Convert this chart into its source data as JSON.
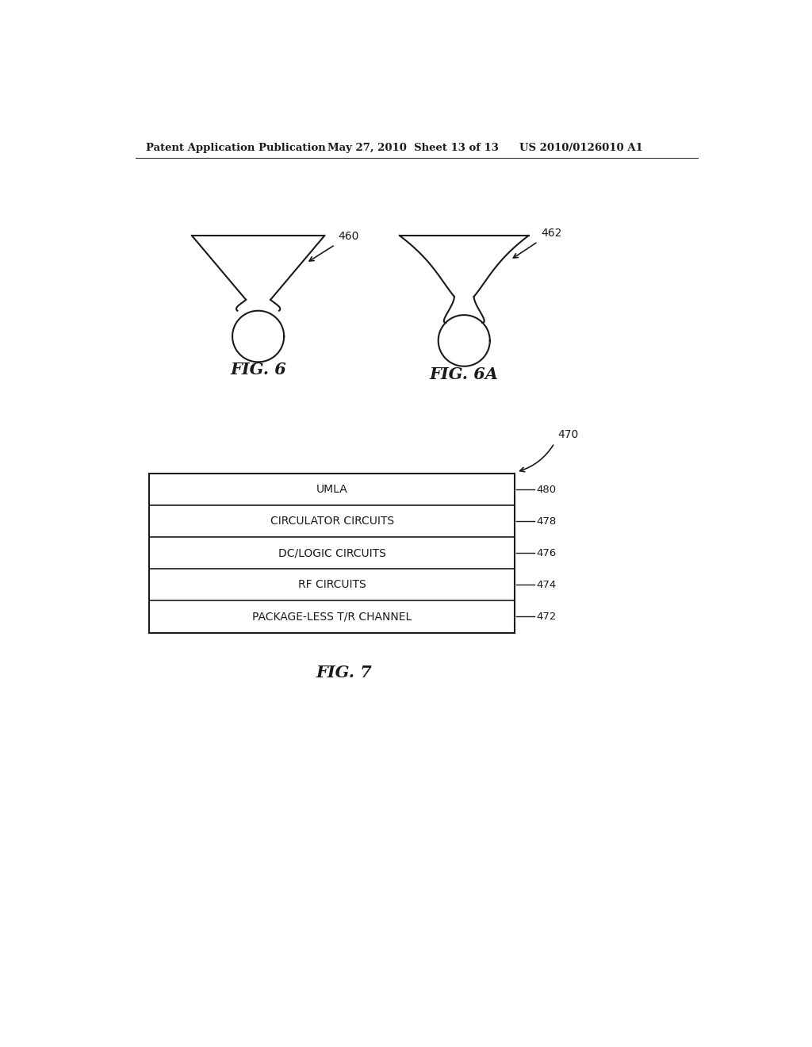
{
  "bg_color": "#ffffff",
  "header_left": "Patent Application Publication",
  "header_mid": "May 27, 2010  Sheet 13 of 13",
  "header_right": "US 2010/0126010 A1",
  "fig6_label": "FIG. 6",
  "fig6a_label": "FIG. 6A",
  "fig7_label": "FIG. 7",
  "label_460": "460",
  "label_462": "462",
  "label_470": "470",
  "layers": [
    {
      "label": "UMLA",
      "ref": "480"
    },
    {
      "label": "CIRCULATOR CIRCUITS",
      "ref": "478"
    },
    {
      "label": "DC/LOGIC CIRCUITS",
      "ref": "476"
    },
    {
      "label": "RF CIRCUITS",
      "ref": "474"
    },
    {
      "label": "PACKAGE-LESS T/R CHANNEL",
      "ref": "472"
    }
  ],
  "line_color": "#1a1a1a",
  "text_color": "#1a1a1a"
}
